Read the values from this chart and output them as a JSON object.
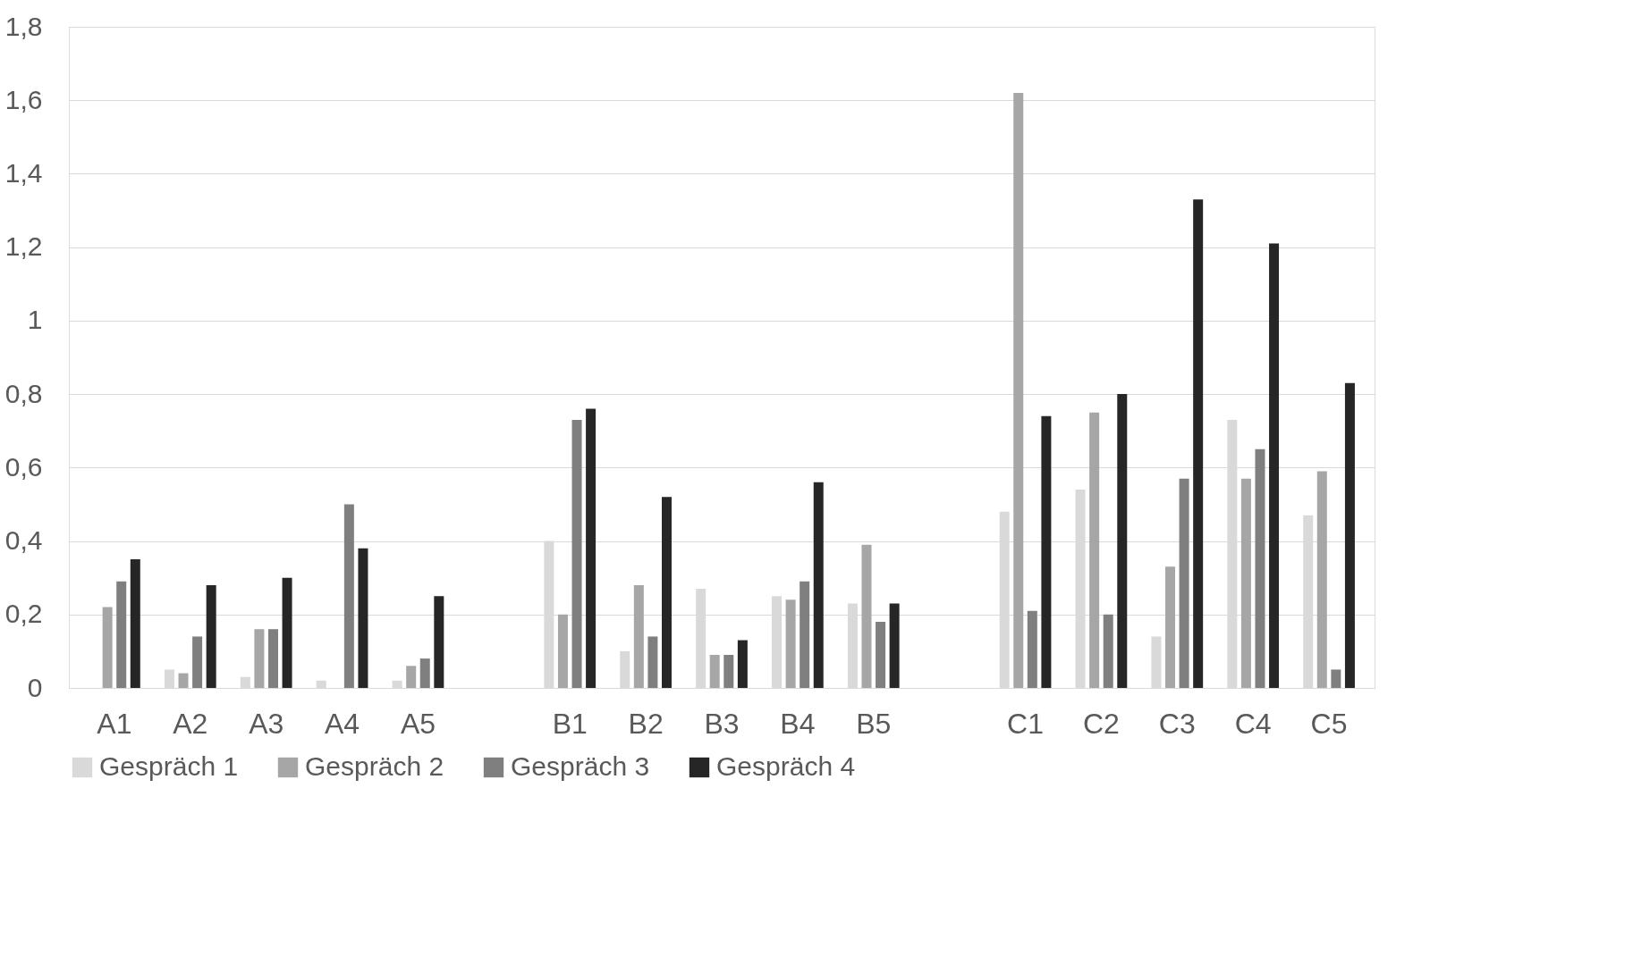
{
  "chart_data": {
    "type": "bar",
    "categories": [
      "A1",
      "A2",
      "A3",
      "A4",
      "A5",
      null,
      "B1",
      "B2",
      "B3",
      "B4",
      "B5",
      null,
      "C1",
      "C2",
      "C3",
      "C4",
      "C5"
    ],
    "series": [
      {
        "name": "Gespräch 1",
        "color": "#d9d9d9",
        "values": [
          0,
          0.05,
          0.03,
          0.02,
          0.02,
          null,
          0.4,
          0.1,
          0.27,
          0.25,
          0.23,
          null,
          0.48,
          0.54,
          0.14,
          0.73,
          0.47
        ]
      },
      {
        "name": "Gespräch 2",
        "color": "#a6a6a6",
        "values": [
          0.22,
          0.04,
          0.16,
          0,
          0.06,
          null,
          0.2,
          0.28,
          0.09,
          0.24,
          0.39,
          null,
          1.62,
          0.75,
          0.33,
          0.57,
          0.59
        ]
      },
      {
        "name": "Gespräch 3",
        "color": "#7f7f7f",
        "values": [
          0.29,
          0.14,
          0.16,
          0.5,
          0.08,
          null,
          0.73,
          0.14,
          0.09,
          0.29,
          0.18,
          null,
          0.21,
          0.2,
          0.57,
          0.65,
          0.05
        ]
      },
      {
        "name": "Gespräch 4",
        "color": "#262626",
        "values": [
          0.35,
          0.28,
          0.3,
          0.38,
          0.25,
          null,
          0.76,
          0.52,
          0.13,
          0.56,
          0.23,
          null,
          0.74,
          0.8,
          1.33,
          1.21,
          0.83
        ]
      }
    ],
    "ylim": [
      0,
      1.8
    ],
    "yticks": [
      0,
      {
        "value": 0.2,
        "label": "0,2"
      },
      {
        "value": 0.4,
        "label": "0,4"
      },
      {
        "value": 0.6,
        "label": "0,6"
      },
      {
        "value": 0.8,
        "label": "0,8"
      },
      1,
      {
        "value": 1.2,
        "label": "1,2"
      },
      {
        "value": 1.4,
        "label": "1,4"
      },
      {
        "value": 1.6,
        "label": "1,6"
      },
      {
        "value": 1.8,
        "label": "1,8"
      }
    ],
    "grid": "y",
    "legend": "bottom"
  }
}
